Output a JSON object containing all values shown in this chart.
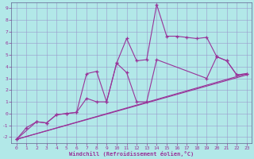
{
  "xlabel": "Windchill (Refroidissement éolien,°C)",
  "background_color": "#b2e8e8",
  "line_color": "#993399",
  "grid_color": "#9999cc",
  "xlim": [
    -0.5,
    23.5
  ],
  "ylim": [
    -2.5,
    9.5
  ],
  "xticks": [
    0,
    1,
    2,
    3,
    4,
    5,
    6,
    7,
    8,
    9,
    10,
    11,
    12,
    13,
    14,
    15,
    16,
    17,
    18,
    19,
    20,
    21,
    22,
    23
  ],
  "yticks": [
    -2,
    -1,
    0,
    1,
    2,
    3,
    4,
    5,
    6,
    7,
    8,
    9
  ],
  "line1_x": [
    0,
    1,
    2,
    3,
    4,
    5,
    6,
    7,
    8,
    9,
    10,
    11,
    12,
    13,
    14,
    15,
    16,
    17,
    18,
    19,
    20,
    21,
    22,
    23
  ],
  "line1_y": [
    -2.2,
    -1.2,
    -0.7,
    -0.8,
    -0.1,
    0.0,
    0.1,
    1.3,
    1.0,
    1.0,
    4.3,
    6.4,
    4.5,
    4.6,
    9.3,
    6.6,
    6.6,
    6.5,
    6.4,
    6.5,
    4.85,
    4.5,
    3.3,
    3.4
  ],
  "line2_x": [
    0,
    2,
    3,
    4,
    5,
    6,
    7,
    8,
    9,
    10,
    11,
    12,
    13,
    14,
    19,
    20,
    21,
    22,
    23
  ],
  "line2_y": [
    -2.2,
    -0.7,
    -0.8,
    -0.1,
    0.0,
    0.1,
    3.4,
    3.6,
    1.0,
    4.3,
    3.5,
    1.0,
    1.0,
    4.6,
    3.0,
    4.85,
    4.5,
    3.3,
    3.4
  ],
  "line3_x": [
    0,
    23
  ],
  "line3_y": [
    -2.2,
    3.4
  ],
  "line4_x": [
    0,
    23
  ],
  "line4_y": [
    -2.2,
    3.3
  ]
}
